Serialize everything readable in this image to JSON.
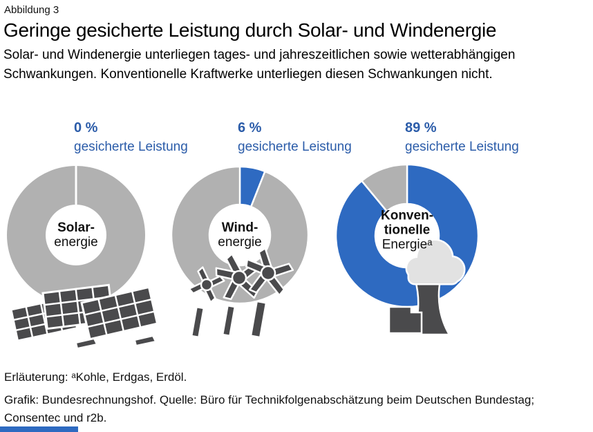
{
  "figure_label": "Abbildung 3",
  "title": "Geringe gesicherte Leistung durch Solar- und Windenergie",
  "subtitle_lines": [
    "Solar- und Windenergie unterliegen tages- und jahreszeitlichen sowie wetterabhängigen",
    "Schwankungen. Konventionelle Kraftwerke unterliegen diesen Schwankungen nicht."
  ],
  "chart_data": {
    "type": "pie",
    "variant": "donut-small-multiples",
    "metric": "gesicherte Leistung",
    "unit": "%",
    "legend_position": "above-each-donut",
    "donuts": [
      {
        "name": "Solarenergie",
        "value_pct": 0,
        "value_label": "0 %",
        "caption": "gesicherte Leistung",
        "center_lines": [
          {
            "text": "Solar-",
            "bold": true
          },
          {
            "text": "energie",
            "bold": false
          }
        ]
      },
      {
        "name": "Windenergie",
        "value_pct": 6,
        "value_label": "6 %",
        "caption": "gesicherte Leistung",
        "center_lines": [
          {
            "text": "Wind-",
            "bold": true
          },
          {
            "text": "energie",
            "bold": false
          }
        ]
      },
      {
        "name": "Konventionelle Energie",
        "value_pct": 89,
        "value_label": "89 %",
        "caption": "gesicherte Leistung",
        "center_lines": [
          {
            "text": "Konven-",
            "bold": true
          },
          {
            "text": "tionelle",
            "bold": true
          },
          {
            "text": "Energieᵃ",
            "bold": false
          }
        ]
      }
    ],
    "colors": {
      "secured": "#2e6ac1",
      "not_secured": "#b1b1b1",
      "value_text": "#2b5ca9",
      "illustration_dark": "#4a4a4c",
      "cloud_gray": "#e2e2e2"
    }
  },
  "footnote": "Erläuterung: ᵃKohle, Erdgas, Erdöl.",
  "source_lines": [
    "Grafik: Bundesrechnungshof. Quelle: Büro für Technikfolgenabschätzung beim Deutschen Bundestag;",
    "Consentec und r2b."
  ]
}
